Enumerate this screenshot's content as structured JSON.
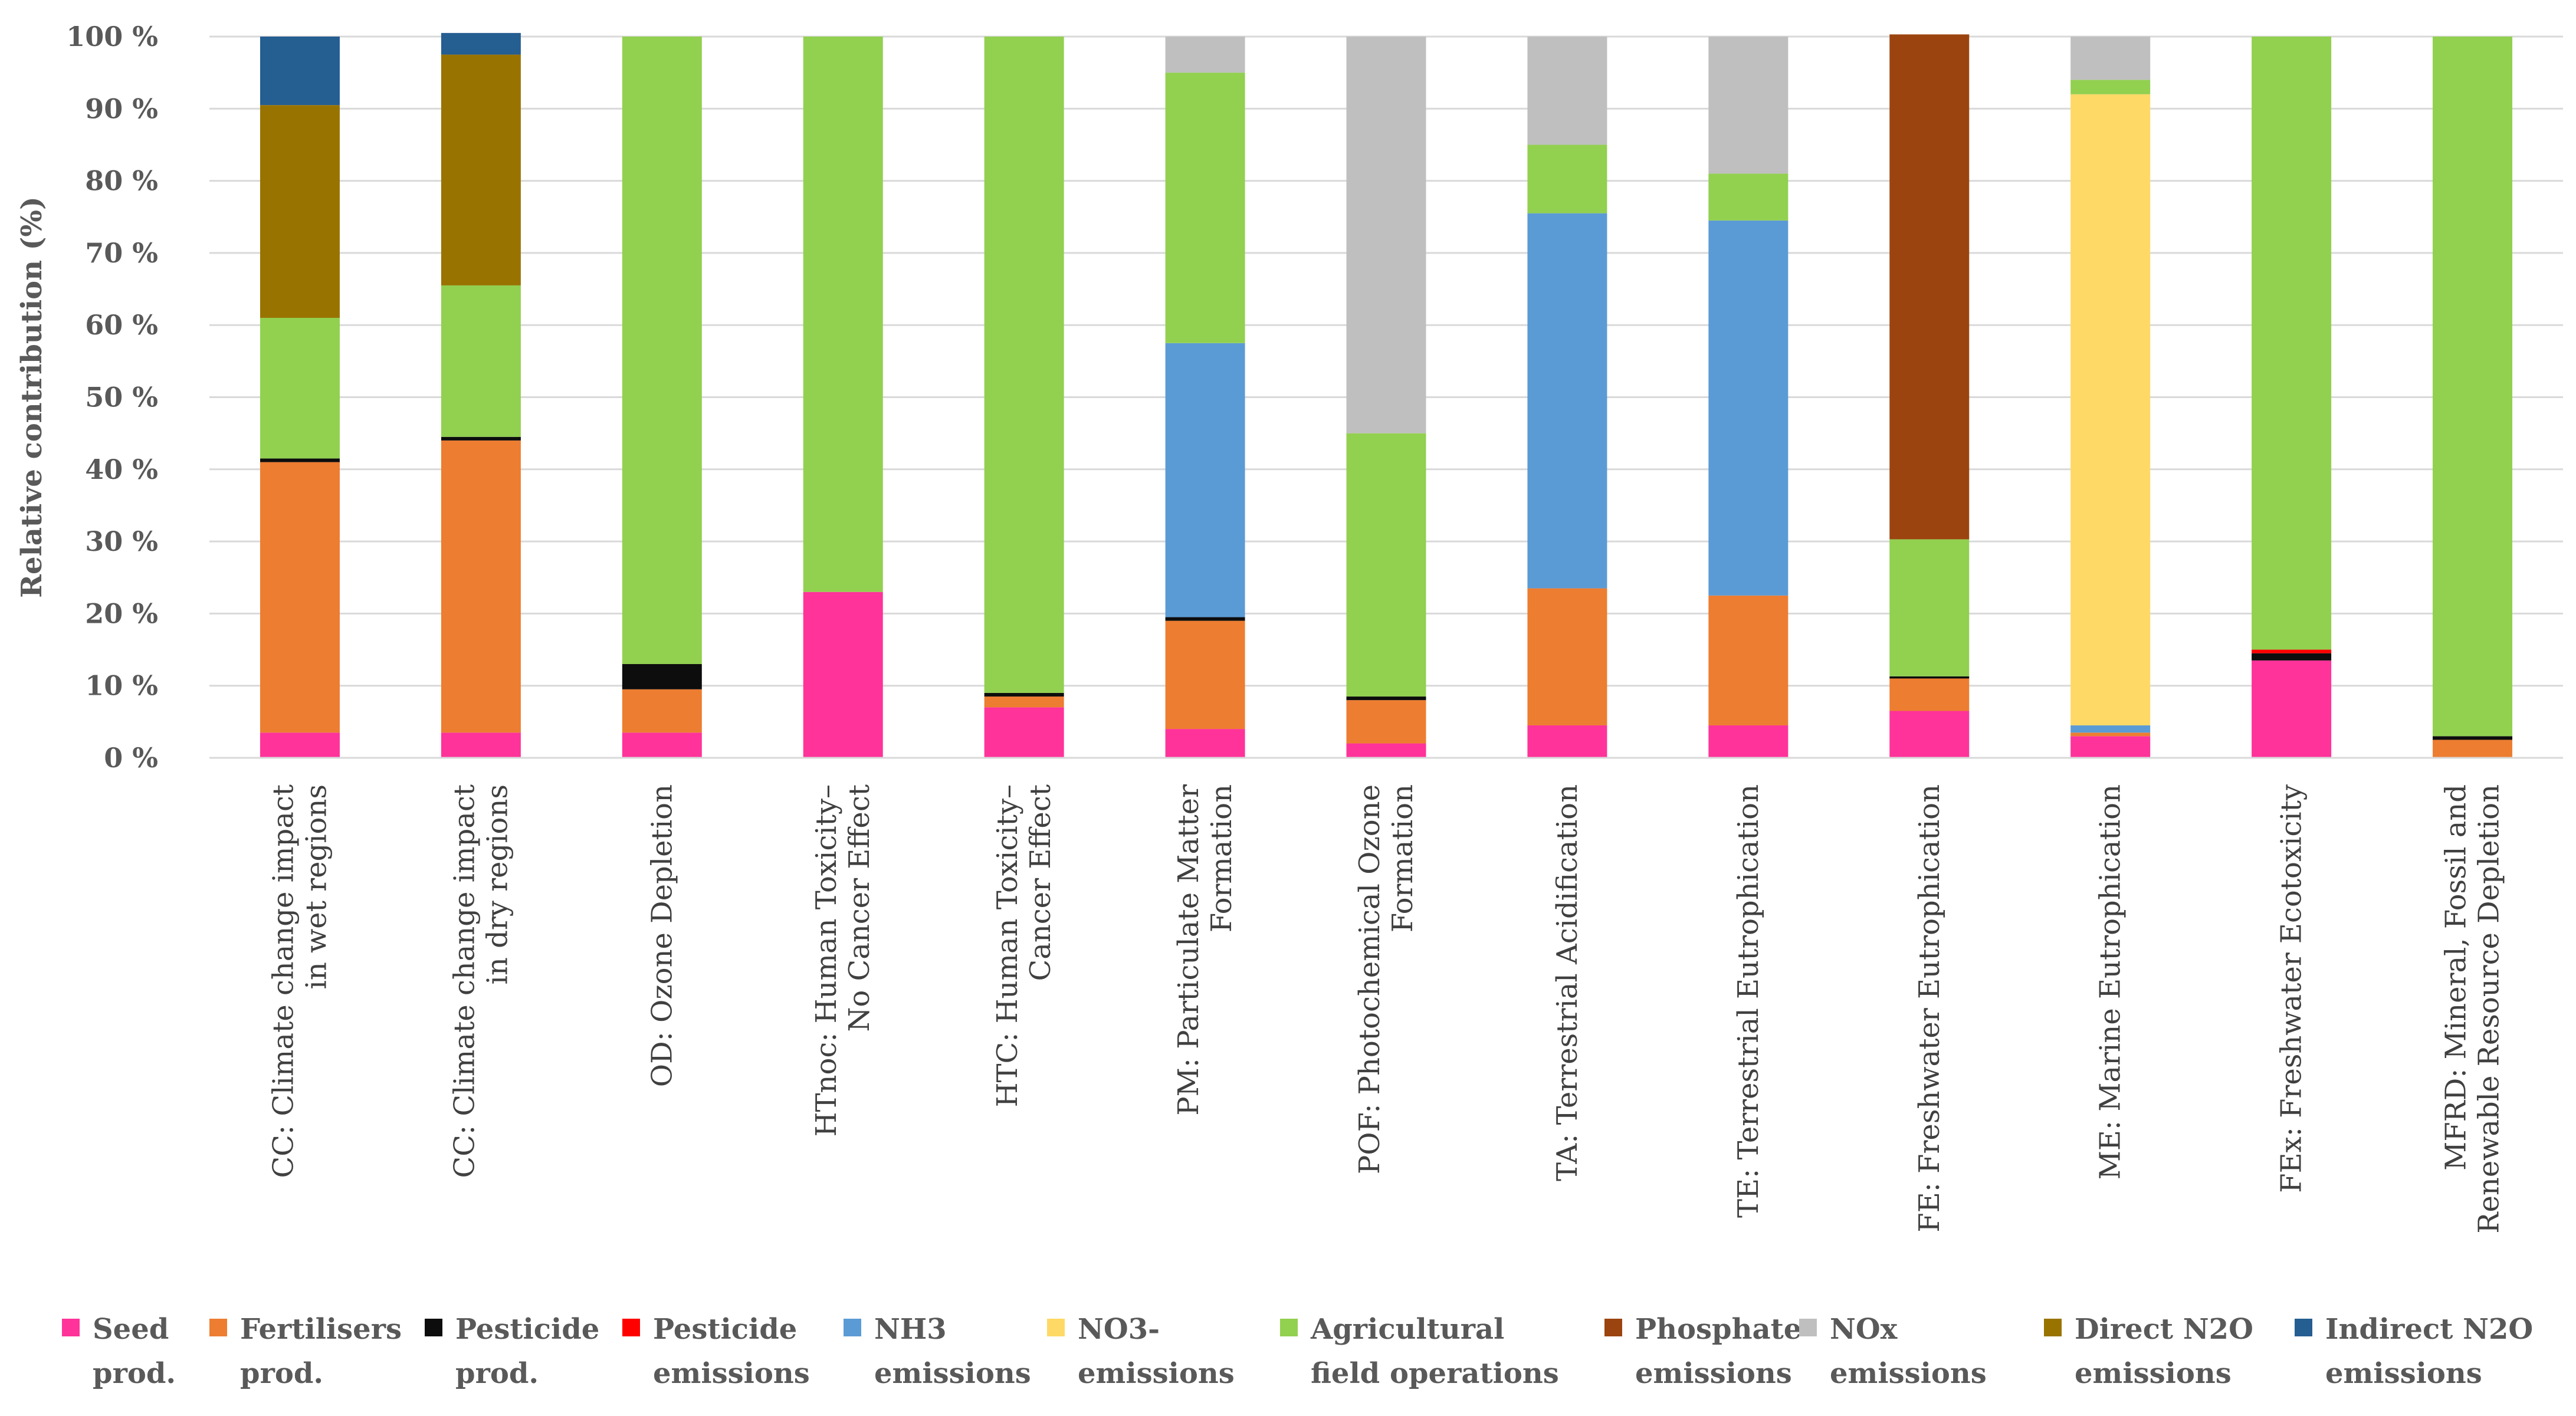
{
  "chart_data": {
    "type": "bar",
    "stacked": true,
    "ylabel": "Relative contribution (%)",
    "ylim": [
      0,
      100
    ],
    "yticks": [
      "0 %",
      "10 %",
      "20 %",
      "30 %",
      "40 %",
      "50 %",
      "60 %",
      "70 %",
      "80 %",
      "90 %",
      "100 %"
    ],
    "grid": "horizontal",
    "legend_position": "bottom",
    "categories": [
      [
        "CC: Climate change impact",
        "in wet regions"
      ],
      [
        "CC: Climate change impact",
        "in dry regions"
      ],
      [
        "OD: Ozone Depletion"
      ],
      [
        "HTnoc: Human Toxicity–",
        "No Cancer Effect"
      ],
      [
        "HTC: Human Toxicity–",
        "Cancer Effect"
      ],
      [
        "PM: Particulate Matter",
        "Formation"
      ],
      [
        "POF: Photochemical Ozone",
        "Formation"
      ],
      [
        "TA: Terrestrial Acidification"
      ],
      [
        "TE: Terrestrial Eutrophication"
      ],
      [
        "FE: Freshwater Eutrophication"
      ],
      [
        "ME: Marine Eutrophication"
      ],
      [
        "FEx: Freshwater Ecotoxicity"
      ],
      [
        "MFRD: Mineral, Fossil and",
        "Renewable Resource Depletion"
      ]
    ],
    "series": [
      {
        "name": [
          "Seed",
          "prod."
        ],
        "color": "#ff3399",
        "values": [
          3.5,
          3.5,
          3.5,
          23,
          7,
          4,
          2,
          4.5,
          4.5,
          6.5,
          3,
          13.5,
          0
        ]
      },
      {
        "name": [
          "Fertilisers",
          "prod."
        ],
        "color": "#ed7d31",
        "values": [
          37.5,
          40.5,
          6,
          0,
          1.5,
          15,
          6,
          19,
          18,
          4.5,
          0.5,
          0,
          2.5
        ]
      },
      {
        "name": [
          "Pesticide",
          "prod."
        ],
        "color": "#0d0d0d",
        "values": [
          0.5,
          0.5,
          3.5,
          0,
          0.5,
          0.5,
          0.5,
          0,
          0,
          0.3,
          0,
          1,
          0.5
        ]
      },
      {
        "name": [
          "Pesticide",
          "emissions"
        ],
        "color": "#ff0000",
        "values": [
          0,
          0,
          0,
          0,
          0,
          0,
          0,
          0,
          0,
          0,
          0,
          0.5,
          0
        ]
      },
      {
        "name": [
          "NH3",
          "emissions"
        ],
        "color": "#5b9bd5",
        "values": [
          0,
          0,
          0,
          0,
          0,
          38,
          0,
          52,
          52,
          0,
          1,
          0,
          0
        ]
      },
      {
        "name": [
          "NO3-",
          "emissions"
        ],
        "color": "#ffd966",
        "values": [
          0,
          0,
          0,
          0,
          0,
          0,
          0,
          0,
          0,
          0,
          87.5,
          0,
          0
        ]
      },
      {
        "name": [
          "Agricultural",
          "field operations"
        ],
        "color": "#92d050",
        "values": [
          19.5,
          21,
          87,
          77,
          91,
          37.5,
          36.5,
          9.5,
          6.5,
          19,
          2,
          85,
          97
        ]
      },
      {
        "name": [
          "Phosphate",
          "emissions"
        ],
        "color": "#9c4410",
        "values": [
          0,
          0,
          0,
          0,
          0,
          0,
          0,
          0,
          0,
          70,
          0,
          0,
          0
        ]
      },
      {
        "name": [
          "NOx",
          "emissions"
        ],
        "color": "#bfbfbf",
        "values": [
          0,
          0,
          0,
          0,
          0,
          5,
          55,
          15,
          19,
          0,
          6,
          0,
          0
        ]
      },
      {
        "name": [
          "Direct N2O",
          "emissions"
        ],
        "color": "#997300",
        "values": [
          29.5,
          32,
          0,
          0,
          0,
          0,
          0,
          0,
          0,
          0,
          0,
          0,
          0
        ]
      },
      {
        "name": [
          "Indirect N2O",
          "emissions"
        ],
        "color": "#255e91",
        "values": [
          9.5,
          3,
          0,
          0,
          0,
          0,
          0,
          0,
          0,
          0,
          0,
          0,
          0
        ]
      }
    ]
  }
}
